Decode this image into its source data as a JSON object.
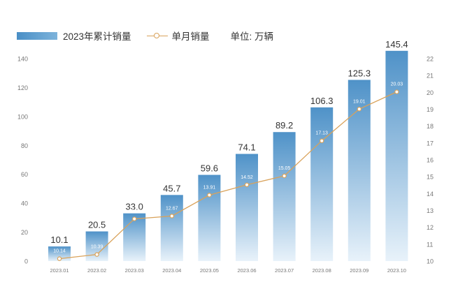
{
  "legend": {
    "bar_label": "2023年累计销量",
    "line_label": "单月销量",
    "unit_label": "单位: 万辆"
  },
  "colors": {
    "bar_top": "#4f92c8",
    "bar_bottom": "#e8f2fa",
    "line": "#d9a25a",
    "axis_text": "#777777",
    "bar_value_text": "#333333",
    "inner_label": "#ffffff"
  },
  "chart_data": {
    "type": "bar+line",
    "categories": [
      "2023.01",
      "2023.02",
      "2023.03",
      "2023.04",
      "2023.05",
      "2023.06",
      "2023.07",
      "2023.08",
      "2023.09",
      "2023.10"
    ],
    "series": [
      {
        "name": "2023年累计销量",
        "type": "bar",
        "axis": "left",
        "values": [
          10.1,
          20.5,
          33.0,
          45.7,
          59.6,
          74.1,
          89.2,
          106.3,
          125.3,
          145.4
        ],
        "labels": [
          "10.1",
          "20.5",
          "33.0",
          "45.7",
          "59.6",
          "74.1",
          "89.2",
          "106.3",
          "125.3",
          "145.4"
        ]
      },
      {
        "name": "单月销量",
        "type": "line",
        "axis": "right",
        "values": [
          10.14,
          10.39,
          12.5,
          12.67,
          13.91,
          14.52,
          15.05,
          17.13,
          19.01,
          20.03
        ],
        "labels": [
          "10.14",
          "10.39",
          "12.50",
          "12.67",
          "13.91",
          "14.52",
          "15.05",
          "17.13",
          "19.01",
          "20.03"
        ]
      }
    ],
    "y_left": {
      "min": 0,
      "max": 140,
      "ticks": [
        "0",
        "20",
        "40",
        "60",
        "80",
        "100",
        "120",
        "140"
      ]
    },
    "y_right": {
      "min": 10,
      "max": 22,
      "ticks": [
        "10",
        "11",
        "12",
        "13",
        "14",
        "15",
        "16",
        "17",
        "18",
        "19",
        "20",
        "21",
        "22"
      ]
    },
    "grid": false,
    "legend_position": "top-left"
  }
}
